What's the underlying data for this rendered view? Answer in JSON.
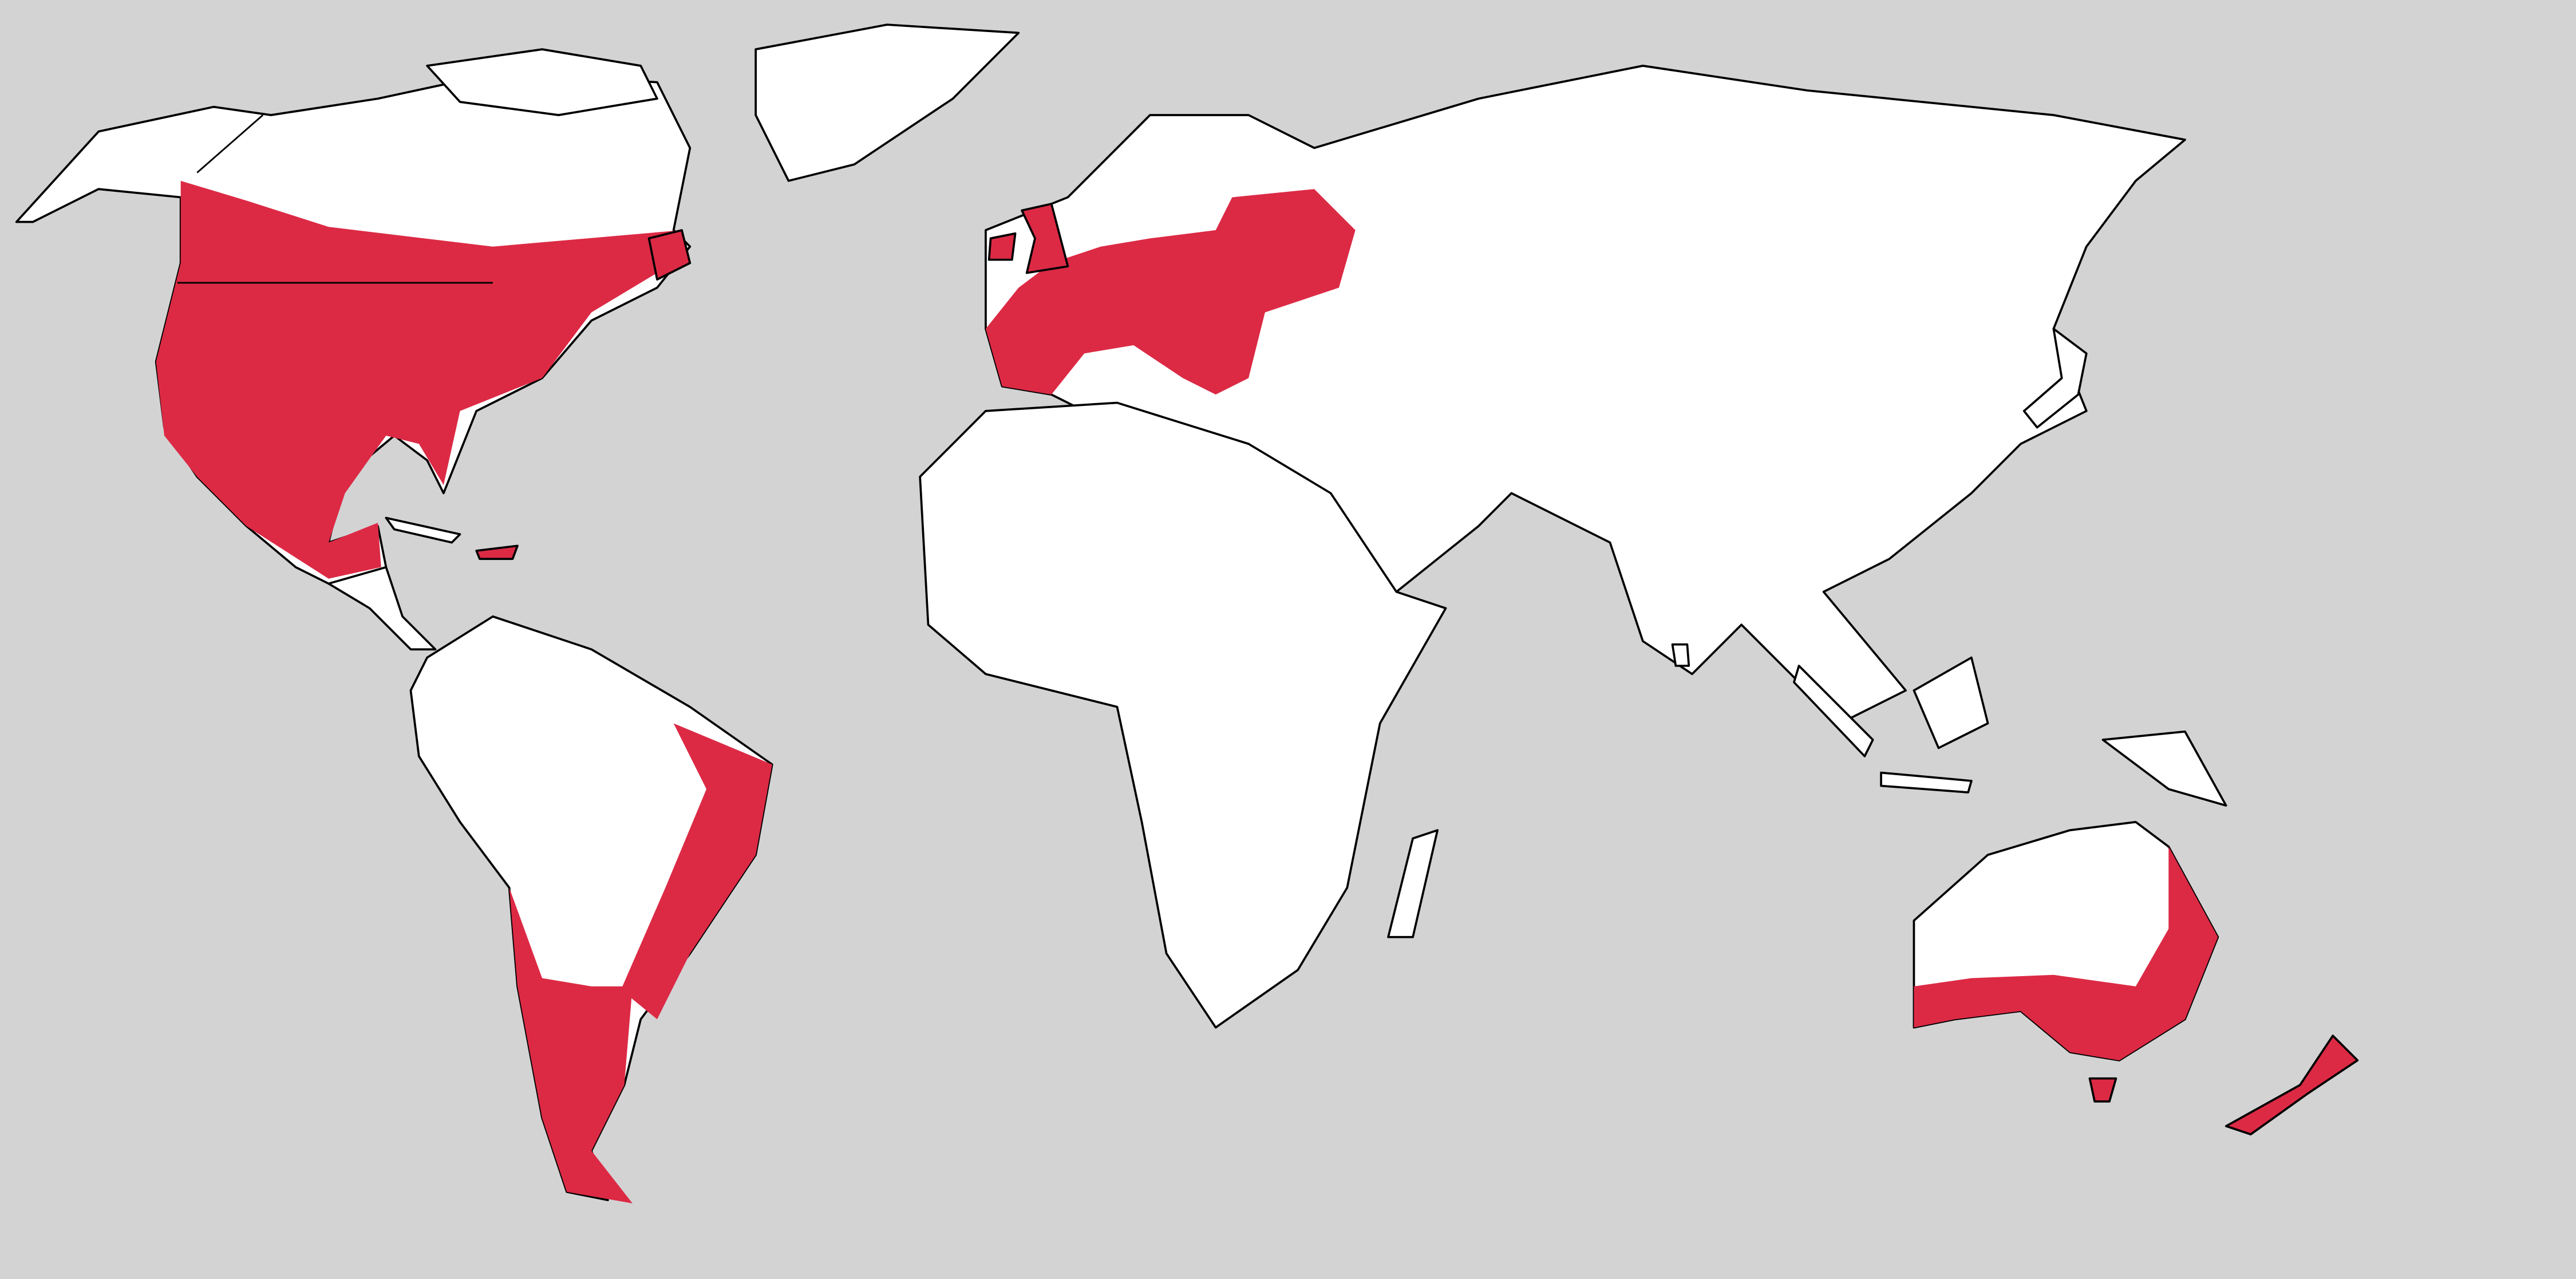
{
  "map": {
    "colors": {
      "ocean": "#d3d3d3",
      "land": "#ffffff",
      "highlight": "#dc2a45",
      "border": "#000000"
    }
  }
}
